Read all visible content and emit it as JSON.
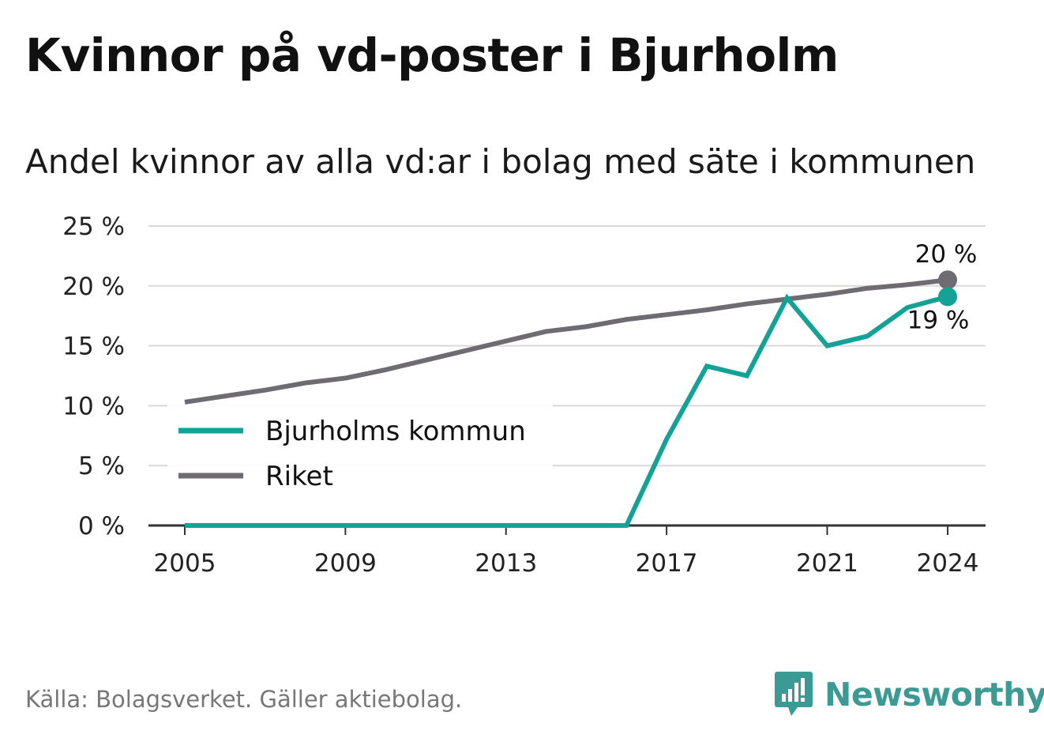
{
  "title": "Kvinnor på vd-poster i Bjurholm",
  "subtitle": "Andel kvinnor av alla vd:ar i bolag med säte i kommunen",
  "source": "Källa: Bolagsverket. Gäller aktiebolag.",
  "brand": "Newsworthy",
  "colors": {
    "bjurholm": "#14a196",
    "riket": "#6e6b73",
    "grid": "#d9d9d9",
    "axis": "#333333",
    "brand": "#3b9a93"
  },
  "chart_data": {
    "type": "line",
    "x": [
      2005,
      2006,
      2007,
      2008,
      2009,
      2010,
      2011,
      2012,
      2013,
      2014,
      2015,
      2016,
      2017,
      2018,
      2019,
      2020,
      2021,
      2022,
      2023,
      2024
    ],
    "xlim": [
      2005,
      2024
    ],
    "ylim": [
      0,
      25
    ],
    "y_ticks": [
      0,
      5,
      10,
      15,
      20,
      25
    ],
    "y_tick_labels": [
      "0 %",
      "5 %",
      "10 %",
      "15 %",
      "20 %",
      "25 %"
    ],
    "x_ticks": [
      2005,
      2009,
      2013,
      2017,
      2021,
      2024
    ],
    "x_tick_labels": [
      "2005",
      "2009",
      "2013",
      "2017",
      "2021",
      "2024"
    ],
    "grid": true,
    "legend_position": "left",
    "series": [
      {
        "name": "Bjurholms kommun",
        "color": "#14a196",
        "values": [
          0,
          0,
          0,
          0,
          0,
          0,
          0,
          0,
          0,
          0,
          0,
          0,
          7.2,
          13.3,
          12.5,
          19.0,
          15.0,
          15.8,
          18.2,
          19.1
        ],
        "end_label": "19 %"
      },
      {
        "name": "Riket",
        "color": "#6e6b73",
        "values": [
          10.3,
          10.8,
          11.3,
          11.9,
          12.3,
          13.0,
          13.8,
          14.6,
          15.4,
          16.2,
          16.6,
          17.2,
          17.6,
          18.0,
          18.5,
          18.9,
          19.3,
          19.8,
          20.1,
          20.5
        ],
        "end_label": "20 %"
      }
    ]
  }
}
